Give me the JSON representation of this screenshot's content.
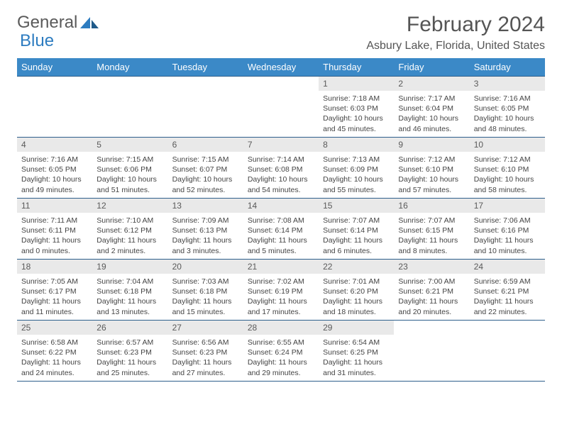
{
  "logo": {
    "word1": "General",
    "word2": "Blue"
  },
  "header": {
    "month_title": "February 2024",
    "location": "Asbury Lake, Florida, United States"
  },
  "colors": {
    "header_bg": "#3b89c7",
    "header_text": "#ffffff",
    "border": "#2d5f8c",
    "daynum_bg": "#e9e9e9",
    "text": "#444444",
    "title_text": "#555555",
    "logo_gray": "#5a5a5a",
    "logo_blue": "#2d7cc0"
  },
  "day_headers": [
    "Sunday",
    "Monday",
    "Tuesday",
    "Wednesday",
    "Thursday",
    "Friday",
    "Saturday"
  ],
  "weeks": [
    [
      null,
      null,
      null,
      null,
      {
        "n": "1",
        "sr": "7:18 AM",
        "ss": "6:03 PM",
        "dl": "10 hours and 45 minutes."
      },
      {
        "n": "2",
        "sr": "7:17 AM",
        "ss": "6:04 PM",
        "dl": "10 hours and 46 minutes."
      },
      {
        "n": "3",
        "sr": "7:16 AM",
        "ss": "6:05 PM",
        "dl": "10 hours and 48 minutes."
      }
    ],
    [
      {
        "n": "4",
        "sr": "7:16 AM",
        "ss": "6:05 PM",
        "dl": "10 hours and 49 minutes."
      },
      {
        "n": "5",
        "sr": "7:15 AM",
        "ss": "6:06 PM",
        "dl": "10 hours and 51 minutes."
      },
      {
        "n": "6",
        "sr": "7:15 AM",
        "ss": "6:07 PM",
        "dl": "10 hours and 52 minutes."
      },
      {
        "n": "7",
        "sr": "7:14 AM",
        "ss": "6:08 PM",
        "dl": "10 hours and 54 minutes."
      },
      {
        "n": "8",
        "sr": "7:13 AM",
        "ss": "6:09 PM",
        "dl": "10 hours and 55 minutes."
      },
      {
        "n": "9",
        "sr": "7:12 AM",
        "ss": "6:10 PM",
        "dl": "10 hours and 57 minutes."
      },
      {
        "n": "10",
        "sr": "7:12 AM",
        "ss": "6:10 PM",
        "dl": "10 hours and 58 minutes."
      }
    ],
    [
      {
        "n": "11",
        "sr": "7:11 AM",
        "ss": "6:11 PM",
        "dl": "11 hours and 0 minutes."
      },
      {
        "n": "12",
        "sr": "7:10 AM",
        "ss": "6:12 PM",
        "dl": "11 hours and 2 minutes."
      },
      {
        "n": "13",
        "sr": "7:09 AM",
        "ss": "6:13 PM",
        "dl": "11 hours and 3 minutes."
      },
      {
        "n": "14",
        "sr": "7:08 AM",
        "ss": "6:14 PM",
        "dl": "11 hours and 5 minutes."
      },
      {
        "n": "15",
        "sr": "7:07 AM",
        "ss": "6:14 PM",
        "dl": "11 hours and 6 minutes."
      },
      {
        "n": "16",
        "sr": "7:07 AM",
        "ss": "6:15 PM",
        "dl": "11 hours and 8 minutes."
      },
      {
        "n": "17",
        "sr": "7:06 AM",
        "ss": "6:16 PM",
        "dl": "11 hours and 10 minutes."
      }
    ],
    [
      {
        "n": "18",
        "sr": "7:05 AM",
        "ss": "6:17 PM",
        "dl": "11 hours and 11 minutes."
      },
      {
        "n": "19",
        "sr": "7:04 AM",
        "ss": "6:18 PM",
        "dl": "11 hours and 13 minutes."
      },
      {
        "n": "20",
        "sr": "7:03 AM",
        "ss": "6:18 PM",
        "dl": "11 hours and 15 minutes."
      },
      {
        "n": "21",
        "sr": "7:02 AM",
        "ss": "6:19 PM",
        "dl": "11 hours and 17 minutes."
      },
      {
        "n": "22",
        "sr": "7:01 AM",
        "ss": "6:20 PM",
        "dl": "11 hours and 18 minutes."
      },
      {
        "n": "23",
        "sr": "7:00 AM",
        "ss": "6:21 PM",
        "dl": "11 hours and 20 minutes."
      },
      {
        "n": "24",
        "sr": "6:59 AM",
        "ss": "6:21 PM",
        "dl": "11 hours and 22 minutes."
      }
    ],
    [
      {
        "n": "25",
        "sr": "6:58 AM",
        "ss": "6:22 PM",
        "dl": "11 hours and 24 minutes."
      },
      {
        "n": "26",
        "sr": "6:57 AM",
        "ss": "6:23 PM",
        "dl": "11 hours and 25 minutes."
      },
      {
        "n": "27",
        "sr": "6:56 AM",
        "ss": "6:23 PM",
        "dl": "11 hours and 27 minutes."
      },
      {
        "n": "28",
        "sr": "6:55 AM",
        "ss": "6:24 PM",
        "dl": "11 hours and 29 minutes."
      },
      {
        "n": "29",
        "sr": "6:54 AM",
        "ss": "6:25 PM",
        "dl": "11 hours and 31 minutes."
      },
      null,
      null
    ]
  ],
  "labels": {
    "sunrise": "Sunrise: ",
    "sunset": "Sunset: ",
    "daylight": "Daylight: "
  }
}
